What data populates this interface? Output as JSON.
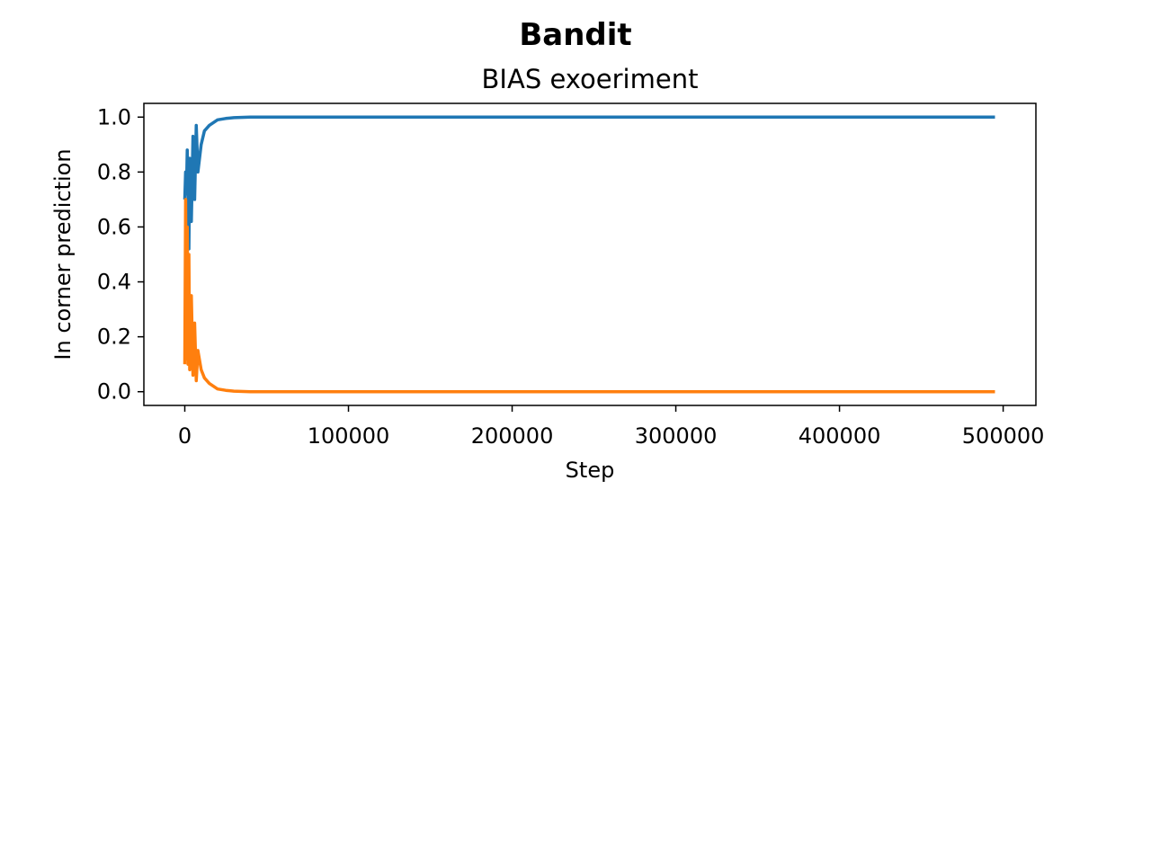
{
  "chart_data": {
    "type": "line",
    "suptitle": "Bandit",
    "title": "BIAS exoeriment",
    "xlabel": "Step",
    "ylabel": "In corner prediction",
    "xlim": [
      -25000,
      520000
    ],
    "ylim": [
      -0.05,
      1.05
    ],
    "xticks": [
      0,
      100000,
      200000,
      300000,
      400000,
      500000
    ],
    "xtick_labels": [
      "0",
      "100000",
      "200000",
      "300000",
      "400000",
      "500000"
    ],
    "yticks": [
      0.0,
      0.2,
      0.4,
      0.6,
      0.8,
      1.0
    ],
    "ytick_labels": [
      "0.0",
      "0.2",
      "0.4",
      "0.6",
      "0.8",
      "1.0"
    ],
    "grid": false,
    "series": [
      {
        "color": "#1f77b4",
        "x": [
          0,
          500,
          1000,
          1500,
          2000,
          2500,
          3000,
          4000,
          5000,
          6000,
          7000,
          8000,
          10000,
          12000,
          15000,
          20000,
          25000,
          30000,
          40000,
          50000,
          100000,
          200000,
          300000,
          400000,
          495000
        ],
        "y": [
          0.7,
          0.8,
          0.72,
          0.88,
          0.75,
          0.52,
          0.85,
          0.62,
          0.93,
          0.7,
          0.97,
          0.8,
          0.9,
          0.95,
          0.97,
          0.99,
          0.995,
          0.998,
          1.0,
          1.0,
          1.0,
          1.0,
          1.0,
          1.0,
          1.0
        ]
      },
      {
        "color": "#ff7f0e",
        "x": [
          0,
          500,
          1000,
          1500,
          2000,
          2500,
          3000,
          4000,
          5000,
          6000,
          7000,
          8000,
          10000,
          12000,
          15000,
          20000,
          25000,
          30000,
          40000,
          50000,
          100000,
          200000,
          300000,
          400000,
          495000
        ],
        "y": [
          0.1,
          0.7,
          0.12,
          0.6,
          0.1,
          0.5,
          0.08,
          0.35,
          0.06,
          0.25,
          0.04,
          0.15,
          0.08,
          0.05,
          0.03,
          0.01,
          0.005,
          0.002,
          0.0,
          0.0,
          0.0,
          0.0,
          0.0,
          0.0,
          0.0
        ]
      }
    ]
  }
}
